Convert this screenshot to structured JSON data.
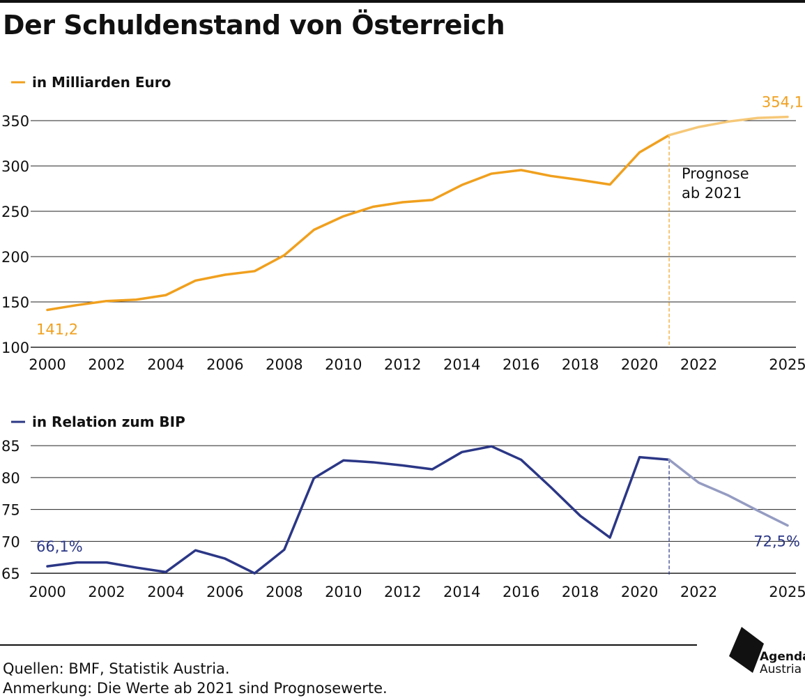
{
  "title": "Der Schuldenstand von Österreich",
  "colors": {
    "orange": "#F0A01E",
    "orange_forecast": "#F6C878",
    "blue": "#2B3786",
    "blue_forecast": "#959CC2",
    "grid": "#222222"
  },
  "chart_data": [
    {
      "type": "line",
      "legend": "in Milliarden Euro",
      "x": [
        2000,
        2001,
        2002,
        2003,
        2004,
        2005,
        2006,
        2007,
        2008,
        2009,
        2010,
        2011,
        2012,
        2013,
        2014,
        2015,
        2016,
        2017,
        2018,
        2019,
        2020,
        2021,
        2022,
        2023,
        2024,
        2025
      ],
      "values": [
        141.2,
        146.5,
        151.0,
        152.5,
        157.5,
        173.5,
        180.0,
        184.0,
        201.5,
        229.5,
        244.5,
        255.0,
        260.0,
        262.5,
        279.0,
        291.5,
        295.5,
        289.0,
        284.5,
        279.5,
        315.0,
        334.0,
        343.0,
        349.0,
        353.0,
        354.1
      ],
      "forecast_from": 2021,
      "ylim": [
        100,
        360
      ],
      "yticks": [
        "100",
        "150",
        "200",
        "250",
        "300",
        "350"
      ],
      "xticks": [
        "2000",
        "2002",
        "2004",
        "2006",
        "2008",
        "2010",
        "2012",
        "2014",
        "2016",
        "2018",
        "2020",
        "2022",
        "2025"
      ],
      "start_label": "141,2",
      "end_label": "354,1",
      "annotation": [
        "Prognose",
        "ab 2021"
      ]
    },
    {
      "type": "line",
      "legend": "in Relation zum BIP",
      "x": [
        2000,
        2001,
        2002,
        2003,
        2004,
        2005,
        2006,
        2007,
        2008,
        2009,
        2010,
        2011,
        2012,
        2013,
        2014,
        2015,
        2016,
        2017,
        2018,
        2019,
        2020,
        2021,
        2022,
        2023,
        2024,
        2025
      ],
      "values": [
        66.1,
        66.7,
        66.7,
        65.9,
        65.2,
        68.6,
        67.3,
        65.0,
        68.7,
        79.9,
        82.7,
        82.4,
        81.9,
        81.3,
        84.0,
        84.9,
        82.8,
        78.5,
        74.0,
        70.6,
        83.2,
        82.8,
        79.2,
        77.2,
        74.8,
        72.5
      ],
      "forecast_from": 2021,
      "ylim": [
        64.8,
        86
      ],
      "yticks": [
        "65",
        "70",
        "75",
        "80",
        "85"
      ],
      "xticks": [
        "2000",
        "2002",
        "2004",
        "2006",
        "2008",
        "2010",
        "2012",
        "2014",
        "2016",
        "2018",
        "2020",
        "2022",
        "2025"
      ],
      "start_label": "66,1%",
      "end_label": "72,5%"
    }
  ],
  "footer": {
    "sources": "Quellen: BMF, Statistik Austria.",
    "note": "Anmerkung: Die Werte ab 2021 sind Prognosewerte."
  },
  "logo": {
    "line1": "Agenda",
    "line2": "Austria",
    "icon": "agenda-austria-logo-icon"
  }
}
